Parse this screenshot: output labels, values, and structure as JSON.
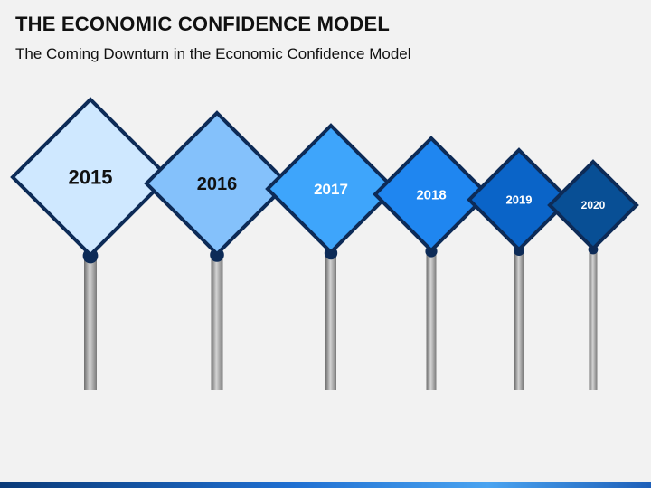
{
  "header": {
    "title": "THE ECONOMIC CONFIDENCE MODEL",
    "subtitle": "The Coming Downturn in the Economic Confidence Model"
  },
  "signs": [
    {
      "year": "2015",
      "fill": "#cfe8ff",
      "text_color": "#111111"
    },
    {
      "year": "2016",
      "fill": "#84c1fb",
      "text_color": "#111111"
    },
    {
      "year": "2017",
      "fill": "#3ea5fb",
      "text_color": "#ffffff"
    },
    {
      "year": "2018",
      "fill": "#1f86f0",
      "text_color": "#ffffff"
    },
    {
      "year": "2019",
      "fill": "#0a64c8",
      "text_color": "#ffffff"
    },
    {
      "year": "2020",
      "fill": "#084f95",
      "text_color": "#ffffff"
    }
  ],
  "colors": {
    "outline": "#0d2b57",
    "post_dark": "#6e6e6e",
    "post_light": "#c8c8c8",
    "knob": "#0d2b57"
  }
}
